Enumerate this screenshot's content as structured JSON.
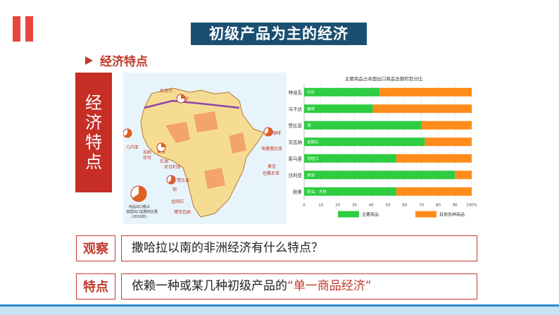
{
  "title": "初级产品为主的经济",
  "section_heading": "经济特点",
  "side_label": [
    "经",
    "济",
    "特",
    "点"
  ],
  "map": {
    "labels": [
      {
        "text": "尼日尔",
        "tag": "uranium"
      },
      {
        "text": "铀矿",
        "tag": "uranium"
      },
      {
        "text": "几内亚",
        "tag": "guinea"
      },
      {
        "text": "加纳",
        "tag": "ghana"
      },
      {
        "text": "可可",
        "tag": "ghana"
      },
      {
        "text": "黄金",
        "tag": "ghana"
      },
      {
        "text": "石油",
        "tag": "nigeria"
      },
      {
        "text": "尼日利亚",
        "tag": "nigeria"
      },
      {
        "text": "赞比亚",
        "tag": "zambia"
      },
      {
        "text": "铜",
        "tag": "zambia"
      },
      {
        "text": "金刚石",
        "tag": "botswana"
      },
      {
        "text": "博茨瓦纳",
        "tag": "botswana"
      },
      {
        "text": "咖啡",
        "tag": "ethiopia"
      },
      {
        "text": "埃塞俄比亚",
        "tag": "ethiopia"
      },
      {
        "text": "黄金",
        "tag": "tanzania"
      },
      {
        "text": "坦桑尼亚",
        "tag": "tanzania"
      }
    ],
    "legend_text": [
      "商品出口额占",
      "该国出口总额的比重",
      "(2010年)"
    ]
  },
  "chart_data": {
    "type": "bar",
    "title": "主要商品占本国出口商品总额的百分比",
    "categories": [
      "科特迪瓦",
      "乌干达",
      "赞比亚",
      "博茨瓦纳",
      "索马里",
      "尼日利亚",
      "刚果"
    ],
    "bar_text": [
      "可可",
      "咖啡",
      "铜",
      "金刚石",
      "活牲口",
      "原油",
      "原油、木材"
    ],
    "series": [
      {
        "name": "主要商品",
        "values": [
          45,
          41,
          70,
          72,
          55,
          90,
          55
        ],
        "color": "#2ecc40"
      },
      {
        "name": "其他各种商品",
        "values": [
          55,
          59,
          30,
          28,
          45,
          10,
          45
        ],
        "color": "#ff8c1a"
      }
    ],
    "x_ticks": [
      "0",
      "10",
      "20",
      "30",
      "40",
      "50",
      "60",
      "70",
      "80",
      "90",
      "100%"
    ],
    "xlim": [
      0,
      100
    ],
    "legend_position": "bottom"
  },
  "observe": {
    "label": "观察",
    "text": "撒哈拉以南的非洲经济有什么特点？"
  },
  "feature": {
    "label": "特点",
    "text": "依赖一种或某几种初级产品的",
    "highlight": "“单一商品经济”"
  }
}
